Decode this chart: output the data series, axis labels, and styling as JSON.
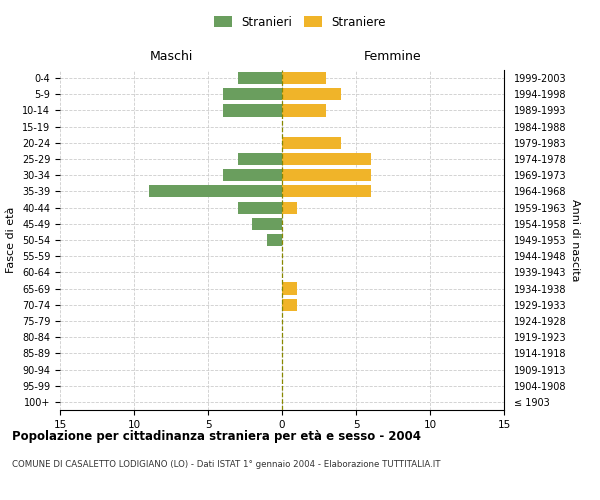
{
  "age_groups": [
    "100+",
    "95-99",
    "90-94",
    "85-89",
    "80-84",
    "75-79",
    "70-74",
    "65-69",
    "60-64",
    "55-59",
    "50-54",
    "45-49",
    "40-44",
    "35-39",
    "30-34",
    "25-29",
    "20-24",
    "15-19",
    "10-14",
    "5-9",
    "0-4"
  ],
  "birth_years": [
    "≤ 1903",
    "1904-1908",
    "1909-1913",
    "1914-1918",
    "1919-1923",
    "1924-1928",
    "1929-1933",
    "1934-1938",
    "1939-1943",
    "1944-1948",
    "1949-1953",
    "1954-1958",
    "1959-1963",
    "1964-1968",
    "1969-1973",
    "1974-1978",
    "1979-1983",
    "1984-1988",
    "1989-1993",
    "1994-1998",
    "1999-2003"
  ],
  "maschi": [
    0,
    0,
    0,
    0,
    0,
    0,
    0,
    0,
    0,
    0,
    1,
    2,
    3,
    9,
    4,
    3,
    0,
    0,
    4,
    4,
    3
  ],
  "femmine": [
    0,
    0,
    0,
    0,
    0,
    0,
    1,
    1,
    0,
    0,
    0,
    0,
    1,
    6,
    6,
    6,
    4,
    0,
    3,
    4,
    3
  ],
  "color_maschi": "#6a9e5e",
  "color_femmine": "#f0b429",
  "title": "Popolazione per cittadinanza straniera per età e sesso - 2004",
  "subtitle": "COMUNE DI CASALETTO LODIGIANO (LO) - Dati ISTAT 1° gennaio 2004 - Elaborazione TUTTITALIA.IT",
  "ylabel_left": "Fasce di età",
  "ylabel_right": "Anni di nascita",
  "xlabel_maschi": "Maschi",
  "xlabel_femmine": "Femmine",
  "legend_maschi": "Stranieri",
  "legend_femmine": "Straniere",
  "xlim": 15,
  "background_color": "#ffffff",
  "grid_color": "#cccccc"
}
